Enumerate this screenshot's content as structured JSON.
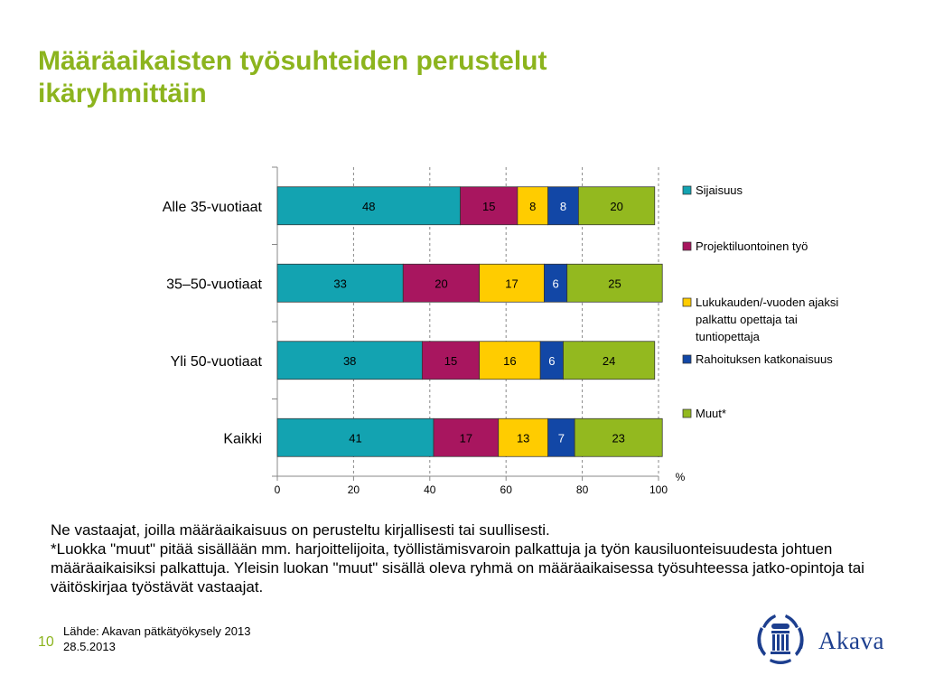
{
  "slide": {
    "title": "Määräaikaisten työsuhteiden perustelut ikäryhmittäin",
    "page_number": "10"
  },
  "notes": {
    "line1": "Ne vastaajat, joilla määräaikaisuus on perusteltu kirjallisesti tai suullisesti.",
    "line2": "*Luokka \"muut\" pitää sisällään mm. harjoittelijoita, työllistämisvaroin palkattuja ja työn kausiluonteisuudesta johtuen määräaikaisiksi palkattuja. Yleisin luokan \"muut\" sisällä oleva ryhmä on määräaikaisessa työsuhteessa jatko-opintoja tai väitöskirjaa työstävät vastaajat."
  },
  "footer": {
    "source": "Lähde: Akavan pätkätyökysely 2013",
    "date": "28.5.2013"
  },
  "logo": {
    "text": "Akava",
    "color": "#1d3f8f"
  },
  "colors": {
    "title": "#8cb41e"
  },
  "chart_data": {
    "type": "bar",
    "orientation": "horizontal",
    "stacked": true,
    "categories": [
      "Alle 35-vuotiaat",
      "35–50-vuotiaat",
      "Yli 50-vuotiaat",
      "Kaikki"
    ],
    "series": [
      {
        "name": "Sijaisuus",
        "color": "#13a3b1",
        "values": [
          48,
          33,
          38,
          41
        ],
        "label_color": "#000000"
      },
      {
        "name": "Projektiluontoinen työ",
        "color": "#a8165f",
        "values": [
          15,
          20,
          15,
          17
        ],
        "label_color": "#000000"
      },
      {
        "name": "Lukukauden/-vuoden ajaksi palkattu opettaja tai tuntiopettaja",
        "name_lines": [
          "Lukukauden/-vuoden ajaksi",
          "palkattu opettaja tai",
          "tuntiopettaja"
        ],
        "color": "#ffcc00",
        "values": [
          8,
          17,
          16,
          13
        ],
        "label_color": "#000000"
      },
      {
        "name": "Rahoituksen katkonaisuus",
        "color": "#1247a6",
        "values": [
          8,
          6,
          6,
          7
        ],
        "label_color": "#ffffff"
      },
      {
        "name": "Muut*",
        "color": "#93b91f",
        "values": [
          20,
          25,
          24,
          23
        ],
        "label_color": "#000000"
      }
    ],
    "x_ticks": [
      0,
      20,
      40,
      60,
      80,
      100
    ],
    "xlim": [
      0,
      100
    ],
    "x_unit": "%",
    "grid": "vertical dashed",
    "legend": "right"
  }
}
